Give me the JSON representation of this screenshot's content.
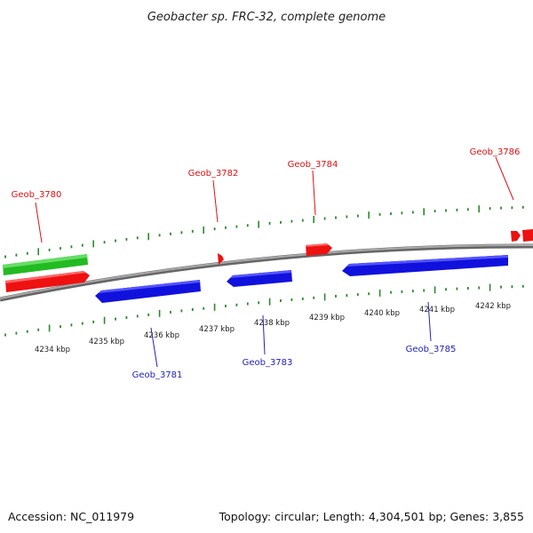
{
  "title": "Geobacter sp. FRC-32, complete genome",
  "footer": {
    "accession": "Accession: NC_011979",
    "summary": "Topology: circular; Length: 4,304,501 bp; Genes: 3,855"
  },
  "colors": {
    "forward_gene": "#ee1111",
    "reverse_gene": "#1111dd",
    "rna_gene": "#22bb22",
    "backbone": "#888888",
    "tick": "#2a8a2a",
    "forward_label": "#dd1111",
    "reverse_label": "#2222bb"
  },
  "scale": {
    "unit": "kbp",
    "labels": [
      "4234 kbp",
      "4235 kbp",
      "4236 kbp",
      "4237 kbp",
      "4238 kbp",
      "4239 kbp",
      "4240 kbp",
      "4241 kbp",
      "4242 kbp"
    ]
  },
  "gene_labels": {
    "forward": [
      "Geob_3780",
      "Geob_3782",
      "Geob_3784",
      "Geob_3786"
    ],
    "reverse": [
      "Geob_3781",
      "Geob_3783",
      "Geob_3785"
    ]
  }
}
